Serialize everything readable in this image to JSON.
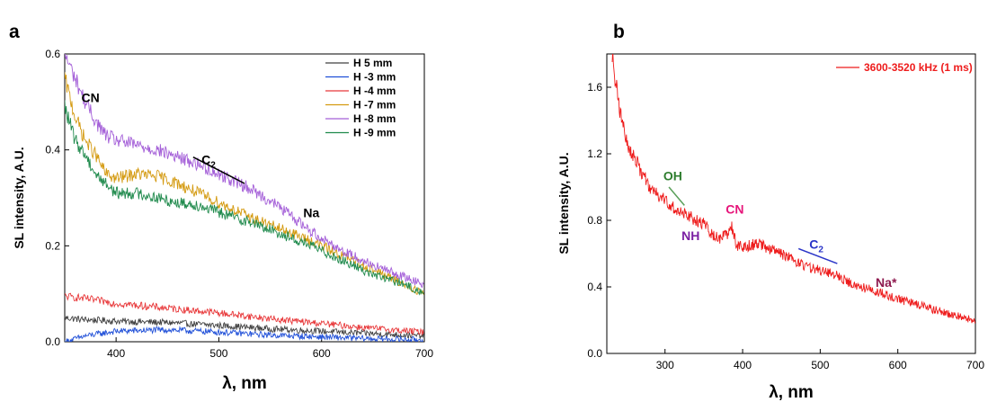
{
  "chart_data": [
    {
      "panel_label": "a",
      "type": "line",
      "xlabel": "λ, nm",
      "ylabel": "SL intensity, A.U.",
      "xlim": [
        350,
        700
      ],
      "ylim": [
        0,
        0.6
      ],
      "xticks": [
        400,
        500,
        600,
        700
      ],
      "yticks": [
        0.0,
        0.2,
        0.4,
        0.6
      ],
      "xtick_labels": [
        "400",
        "500",
        "600",
        "700"
      ],
      "ytick_labels": [
        "0.0",
        "0.2",
        "0.4",
        "0.6"
      ],
      "grid": false,
      "legend_position": "top-right",
      "series": [
        {
          "name": "H 5 mm",
          "color": "#404040",
          "x": [
            350,
            370,
            400,
            450,
            500,
            550,
            600,
            650,
            700
          ],
          "y": [
            0.05,
            0.046,
            0.043,
            0.04,
            0.034,
            0.027,
            0.022,
            0.017,
            0.012
          ]
        },
        {
          "name": "H -3 mm",
          "color": "#1f4fd8",
          "x": [
            350,
            370,
            400,
            450,
            500,
            550,
            600,
            650,
            700
          ],
          "y": [
            0.0,
            0.012,
            0.022,
            0.025,
            0.02,
            0.014,
            0.01,
            0.006,
            0.004
          ]
        },
        {
          "name": "H -4 mm",
          "color": "#e8383a",
          "x": [
            350,
            370,
            400,
            450,
            500,
            550,
            600,
            650,
            700
          ],
          "y": [
            0.095,
            0.09,
            0.08,
            0.07,
            0.06,
            0.048,
            0.038,
            0.028,
            0.02
          ]
        },
        {
          "name": "H -7 mm",
          "color": "#d49a10",
          "x": [
            350,
            360,
            370,
            380,
            390,
            400,
            420,
            440,
            460,
            480,
            500,
            530,
            560,
            590,
            620,
            650,
            680,
            700
          ],
          "y": [
            0.55,
            0.47,
            0.42,
            0.39,
            0.35,
            0.34,
            0.35,
            0.345,
            0.33,
            0.31,
            0.29,
            0.26,
            0.235,
            0.21,
            0.18,
            0.15,
            0.12,
            0.1
          ]
        },
        {
          "name": "H -8 mm",
          "color": "#a45fd8",
          "x": [
            350,
            360,
            370,
            380,
            390,
            400,
            420,
            440,
            460,
            480,
            500,
            530,
            560,
            590,
            620,
            650,
            680,
            700
          ],
          "y": [
            0.6,
            0.55,
            0.5,
            0.46,
            0.43,
            0.42,
            0.41,
            0.4,
            0.385,
            0.37,
            0.35,
            0.32,
            0.28,
            0.23,
            0.19,
            0.16,
            0.135,
            0.12
          ]
        },
        {
          "name": "H -9 mm",
          "color": "#1f8a4c",
          "x": [
            350,
            360,
            370,
            380,
            390,
            400,
            420,
            440,
            460,
            480,
            500,
            530,
            560,
            590,
            620,
            650,
            680,
            700
          ],
          "y": [
            0.49,
            0.42,
            0.39,
            0.35,
            0.33,
            0.31,
            0.31,
            0.3,
            0.29,
            0.285,
            0.27,
            0.25,
            0.225,
            0.2,
            0.17,
            0.14,
            0.12,
            0.1
          ]
        }
      ],
      "annotations": [
        {
          "text": "CN",
          "x": 375,
          "y": 0.5,
          "color": "#000000"
        },
        {
          "text": "C",
          "sub": "2",
          "x": 490,
          "y": 0.37,
          "color": "#000000"
        },
        {
          "text": "Na",
          "x": 590,
          "y": 0.26,
          "color": "#000000"
        }
      ],
      "marker_lines": [
        {
          "x": [
            475,
            525
          ],
          "y": [
            0.385,
            0.33
          ],
          "color": "#000000"
        }
      ]
    },
    {
      "panel_label": "b",
      "type": "line",
      "xlabel": "λ, nm",
      "ylabel": "SL intensity, A.U.",
      "xlim": [
        225,
        700
      ],
      "ylim": [
        0,
        1.8
      ],
      "xticks": [
        300,
        400,
        500,
        600,
        700
      ],
      "yticks": [
        0.0,
        0.4,
        0.8,
        1.2,
        1.6
      ],
      "xtick_labels": [
        "300",
        "400",
        "500",
        "600",
        "700"
      ],
      "ytick_labels": [
        "0.0",
        "0.4",
        "0.8",
        "1.2",
        "1.6"
      ],
      "grid": false,
      "legend_position": "top-right",
      "series": [
        {
          "name": "3600-3520 kHz (1 ms)",
          "color": "#ee1c1c",
          "x": [
            232,
            240,
            250,
            260,
            270,
            280,
            290,
            300,
            310,
            320,
            330,
            340,
            350,
            360,
            370,
            380,
            386,
            392,
            400,
            420,
            440,
            460,
            480,
            500,
            520,
            540,
            560,
            580,
            600,
            620,
            650,
            680,
            700
          ],
          "y": [
            1.8,
            1.5,
            1.28,
            1.18,
            1.09,
            1.0,
            0.95,
            0.92,
            0.88,
            0.84,
            0.83,
            0.8,
            0.78,
            0.72,
            0.69,
            0.72,
            0.76,
            0.65,
            0.64,
            0.66,
            0.62,
            0.58,
            0.52,
            0.5,
            0.47,
            0.42,
            0.39,
            0.36,
            0.33,
            0.3,
            0.26,
            0.22,
            0.2
          ]
        }
      ],
      "annotations": [
        {
          "text": "OH",
          "x": 310,
          "y": 1.04,
          "color": "#2e7d2e"
        },
        {
          "text": "NH",
          "x": 333,
          "y": 0.68,
          "color": "#7a1fa2"
        },
        {
          "text": "CN",
          "x": 390,
          "y": 0.84,
          "color": "#e6157a"
        },
        {
          "text": "C",
          "sub": "2",
          "x": 495,
          "y": 0.63,
          "color": "#2b35c8"
        },
        {
          "text": "Na*",
          "x": 585,
          "y": 0.4,
          "color": "#8e1a4f"
        }
      ],
      "marker_lines": [
        {
          "x": [
            305,
            325
          ],
          "y": [
            1.0,
            0.89
          ],
          "color": "#5aa05a"
        },
        {
          "x": [
            472,
            522
          ],
          "y": [
            0.63,
            0.54
          ],
          "color": "#2b35c8"
        }
      ]
    }
  ]
}
